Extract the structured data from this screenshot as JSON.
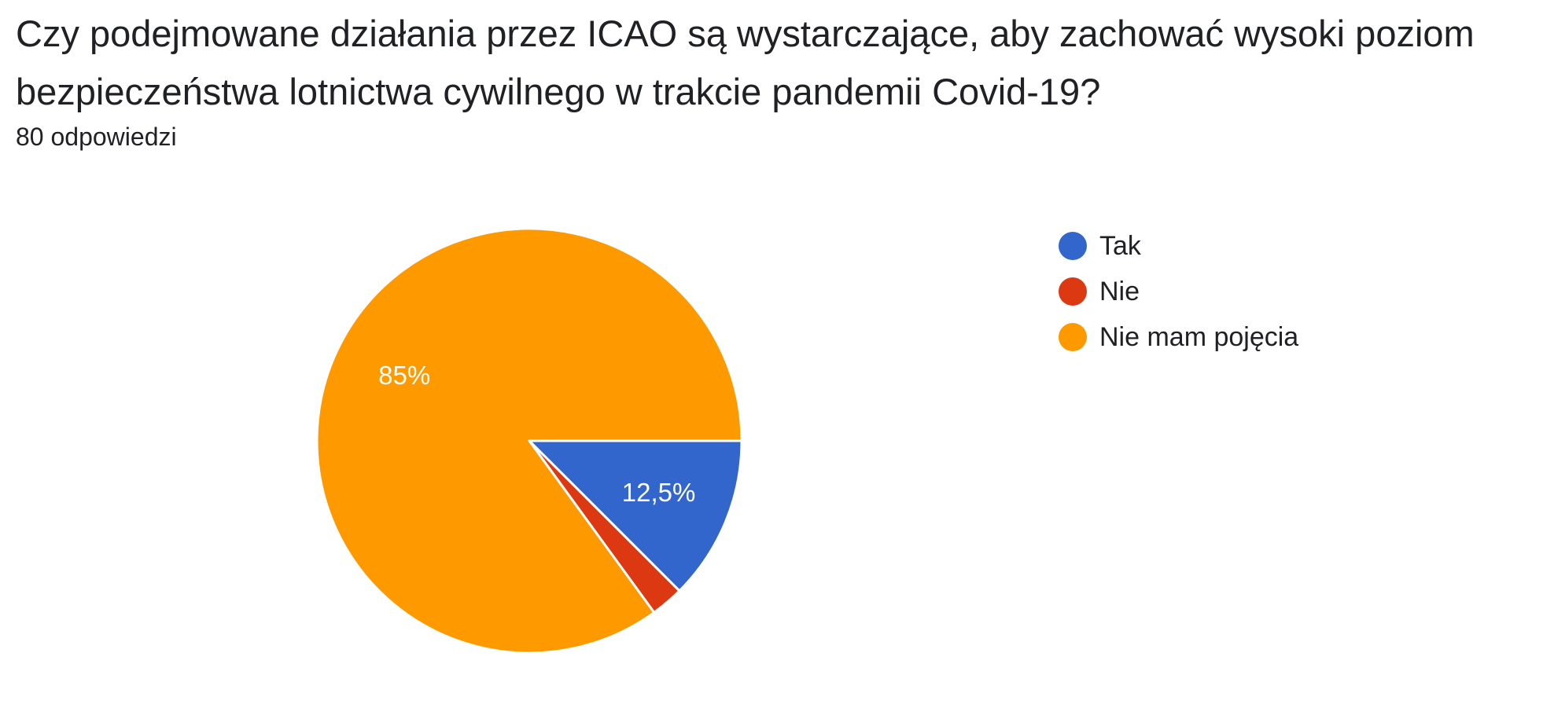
{
  "question": {
    "title": "Czy podejmowane działania przez ICAO są wystarczające, aby zachować wysoki poziom bezpieczeństwa lotnictwa cywilnego w trakcie pandemii Covid-19?",
    "response_count": "80 odpowiedzi"
  },
  "chart_data": {
    "type": "pie",
    "title": "",
    "legend_position": "right",
    "slices": [
      {
        "label": "Tak",
        "value": 12.5,
        "color": "#3366cc",
        "data_label": "12,5%"
      },
      {
        "label": "Nie",
        "value": 2.5,
        "color": "#dc3912",
        "data_label": ""
      },
      {
        "label": "Nie mam pojęcia",
        "value": 85,
        "color": "#ff9900",
        "data_label": "85%"
      }
    ]
  }
}
